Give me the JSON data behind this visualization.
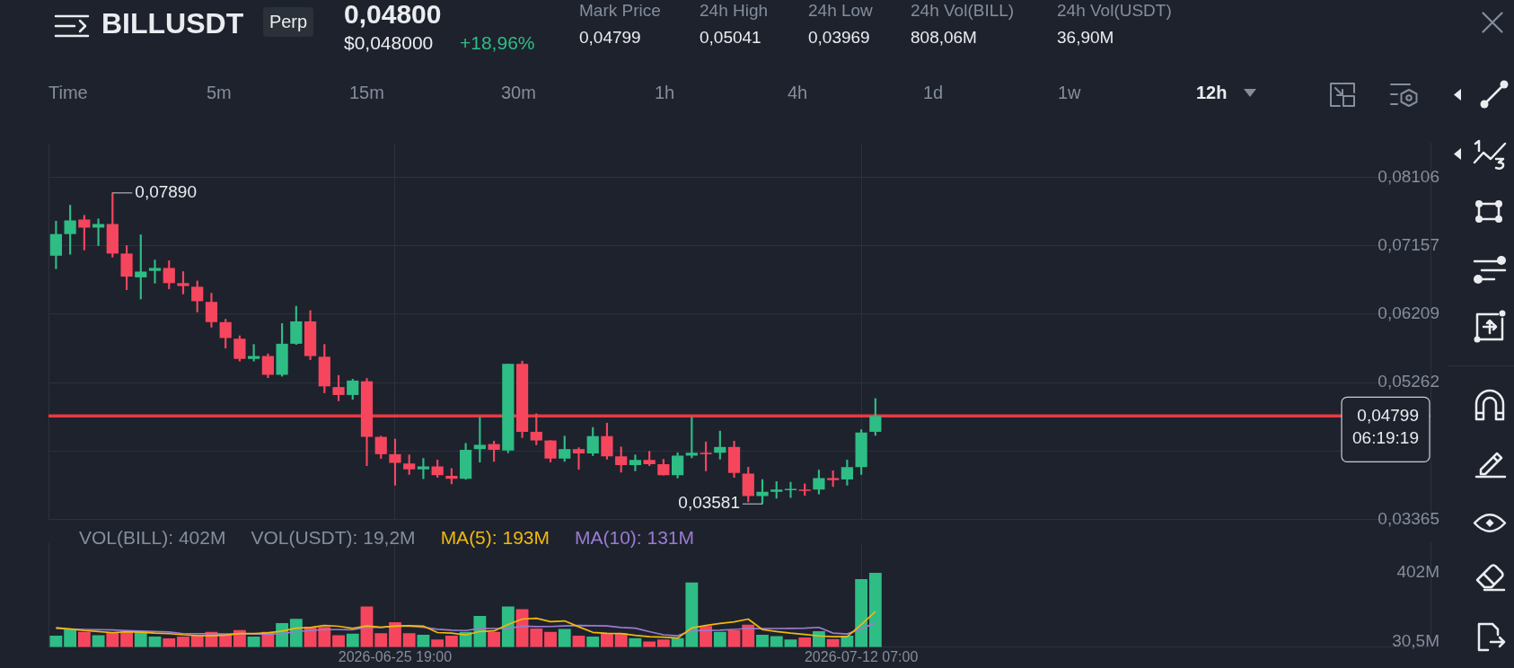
{
  "chart_data": [
    {
      "type": "other",
      "title": "BILLUSDT",
      "annotations": [
        "Perp",
        "0,04800",
        "$0,048000",
        "+18,96%",
        "Mark Price",
        "0,04799",
        "24h High",
        "0,05041",
        "24h Low",
        "0,03969",
        "24h Vol(BILL)",
        "808,06M",
        "24h Vol(USDT)",
        "36,90M",
        "Time",
        "5m",
        "15m",
        "30m",
        "1h",
        "4h",
        "1d",
        "1w",
        "12h"
      ]
    },
    {
      "type": "candlestick",
      "x": [
        "2026-06-13T19:00",
        "2026-06-14T07:00",
        "2026-06-14T19:00",
        "2026-06-15T07:00",
        "2026-06-15T19:00",
        "2026-06-16T07:00",
        "2026-06-16T19:00",
        "2026-06-17T07:00",
        "2026-06-17T19:00",
        "2026-06-18T07:00",
        "2026-06-18T19:00",
        "2026-06-19T07:00",
        "2026-06-19T19:00",
        "2026-06-20T07:00",
        "2026-06-20T19:00",
        "2026-06-21T07:00",
        "2026-06-21T19:00",
        "2026-06-22T07:00",
        "2026-06-22T19:00",
        "2026-06-23T07:00",
        "2026-06-23T19:00",
        "2026-06-24T07:00",
        "2026-06-24T19:00",
        "2026-06-25T07:00",
        "2026-06-25T19:00",
        "2026-06-26T07:00",
        "2026-06-26T19:00",
        "2026-06-27T07:00",
        "2026-06-27T19:00",
        "2026-06-28T07:00",
        "2026-06-28T19:00",
        "2026-06-29T07:00",
        "2026-06-29T19:00",
        "2026-06-30T07:00",
        "2026-06-30T19:00",
        "2026-07-01T07:00",
        "2026-07-01T19:00",
        "2026-07-02T07:00",
        "2026-07-02T19:00",
        "2026-07-03T07:00",
        "2026-07-03T19:00",
        "2026-07-04T07:00",
        "2026-07-04T19:00",
        "2026-07-05T07:00",
        "2026-07-05T19:00",
        "2026-07-06T07:00",
        "2026-07-06T19:00",
        "2026-07-07T07:00",
        "2026-07-07T19:00",
        "2026-07-08T07:00",
        "2026-07-08T19:00",
        "2026-07-09T07:00",
        "2026-07-09T19:00",
        "2026-07-10T07:00",
        "2026-07-10T19:00",
        "2026-07-11T07:00",
        "2026-07-11T19:00",
        "2026-07-12T07:00",
        "2026-07-12T19:00"
      ],
      "ohlc": [
        [
          0.0702,
          0.075,
          0.0684,
          0.0732
        ],
        [
          0.0732,
          0.0772,
          0.0704,
          0.0751
        ],
        [
          0.0752,
          0.0758,
          0.071,
          0.0741
        ],
        [
          0.0741,
          0.0753,
          0.0716,
          0.0746
        ],
        [
          0.0746,
          0.0789,
          0.07,
          0.0705
        ],
        [
          0.0705,
          0.0716,
          0.0655,
          0.0673
        ],
        [
          0.0672,
          0.0731,
          0.0642,
          0.068
        ],
        [
          0.0681,
          0.0696,
          0.0664,
          0.0685
        ],
        [
          0.0685,
          0.0695,
          0.0656,
          0.0664
        ],
        [
          0.0664,
          0.068,
          0.0649,
          0.066
        ],
        [
          0.0659,
          0.0667,
          0.0624,
          0.0639
        ],
        [
          0.0638,
          0.065,
          0.0603,
          0.061
        ],
        [
          0.061,
          0.0614,
          0.0574,
          0.0588
        ],
        [
          0.0587,
          0.0591,
          0.0556,
          0.0559
        ],
        [
          0.0559,
          0.0579,
          0.0556,
          0.0563
        ],
        [
          0.0563,
          0.0566,
          0.0533,
          0.0537
        ],
        [
          0.0537,
          0.0608,
          0.0535,
          0.058
        ],
        [
          0.058,
          0.0632,
          0.0579,
          0.0611
        ],
        [
          0.0611,
          0.0626,
          0.0558,
          0.0563
        ],
        [
          0.0562,
          0.0579,
          0.0512,
          0.0521
        ],
        [
          0.052,
          0.0536,
          0.0501,
          0.0509
        ],
        [
          0.0509,
          0.0531,
          0.0503,
          0.0529
        ],
        [
          0.0528,
          0.0532,
          0.0411,
          0.0451
        ],
        [
          0.0451,
          0.0452,
          0.0421,
          0.0427
        ],
        [
          0.0427,
          0.0448,
          0.0384,
          0.0415
        ],
        [
          0.0414,
          0.0426,
          0.0399,
          0.0406
        ],
        [
          0.0406,
          0.0421,
          0.0393,
          0.041
        ],
        [
          0.041,
          0.0419,
          0.0395,
          0.0398
        ],
        [
          0.0397,
          0.0407,
          0.0386,
          0.0393
        ],
        [
          0.0393,
          0.0442,
          0.0392,
          0.0433
        ],
        [
          0.0434,
          0.0478,
          0.0416,
          0.044
        ],
        [
          0.0441,
          0.0445,
          0.0417,
          0.0433
        ],
        [
          0.0432,
          0.0552,
          0.0429,
          0.0552
        ],
        [
          0.0552,
          0.0556,
          0.045,
          0.0458
        ],
        [
          0.0458,
          0.0483,
          0.044,
          0.0446
        ],
        [
          0.0446,
          0.0446,
          0.0416,
          0.0421
        ],
        [
          0.0421,
          0.0452,
          0.0417,
          0.0434
        ],
        [
          0.0434,
          0.0436,
          0.0406,
          0.0428
        ],
        [
          0.0428,
          0.0464,
          0.0425,
          0.0452
        ],
        [
          0.0452,
          0.047,
          0.042,
          0.0424
        ],
        [
          0.0424,
          0.0437,
          0.0402,
          0.0412
        ],
        [
          0.0412,
          0.0426,
          0.0404,
          0.0419
        ],
        [
          0.0419,
          0.0431,
          0.0411,
          0.0413
        ],
        [
          0.0413,
          0.042,
          0.0398,
          0.0398
        ],
        [
          0.0398,
          0.0429,
          0.0394,
          0.0425
        ],
        [
          0.0425,
          0.0478,
          0.0422,
          0.0429
        ],
        [
          0.0429,
          0.0444,
          0.0404,
          0.0427
        ],
        [
          0.0429,
          0.0459,
          0.042,
          0.0437
        ],
        [
          0.0437,
          0.0445,
          0.0395,
          0.0401
        ],
        [
          0.04,
          0.0409,
          0.0361,
          0.0369
        ],
        [
          0.0369,
          0.0392,
          0.03581,
          0.0375
        ],
        [
          0.0375,
          0.0389,
          0.0366,
          0.0378
        ],
        [
          0.0377,
          0.0388,
          0.0367,
          0.0378
        ],
        [
          0.0378,
          0.0386,
          0.037,
          0.0376
        ],
        [
          0.0378,
          0.0405,
          0.0372,
          0.0394
        ],
        [
          0.0394,
          0.0404,
          0.0382,
          0.0391
        ],
        [
          0.0392,
          0.0419,
          0.0384,
          0.0409
        ],
        [
          0.0409,
          0.0461,
          0.0399,
          0.0457
        ],
        [
          0.0458,
          0.05041,
          0.0453,
          0.04799
        ]
      ],
      "colors": [
        "#2ebd85",
        "#2ebd85",
        "#f6465d",
        "#2ebd85",
        "#f6465d",
        "#f6465d",
        "#2ebd85",
        "#2ebd85",
        "#f6465d",
        "#f6465d",
        "#f6465d",
        "#f6465d",
        "#f6465d",
        "#f6465d",
        "#2ebd85",
        "#f6465d",
        "#2ebd85",
        "#2ebd85",
        "#f6465d",
        "#f6465d",
        "#f6465d",
        "#2ebd85",
        "#f6465d",
        "#f6465d",
        "#f6465d",
        "#f6465d",
        "#2ebd85",
        "#f6465d",
        "#f6465d",
        "#2ebd85",
        "#2ebd85",
        "#f6465d",
        "#2ebd85",
        "#f6465d",
        "#f6465d",
        "#f6465d",
        "#2ebd85",
        "#f6465d",
        "#2ebd85",
        "#f6465d",
        "#f6465d",
        "#2ebd85",
        "#f6465d",
        "#f6465d",
        "#2ebd85",
        "#2ebd85",
        "#f6465d",
        "#2ebd85",
        "#f6465d",
        "#f6465d",
        "#2ebd85",
        "#2ebd85",
        "#2ebd85",
        "#f6465d",
        "#2ebd85",
        "#f6465d",
        "#2ebd85",
        "#2ebd85",
        "#2ebd85"
      ],
      "xlim": [
        "2026-06-13T12:36",
        "2026-08-01T10:30"
      ],
      "xticks": [
        {
          "value": "2026-06-25T19:00",
          "label": null
        },
        {
          "value": "2026-07-12T07:00",
          "label": null
        }
      ],
      "ylim": [
        0.03365,
        0.0858
      ],
      "yticks": [
        {
          "value": 0.08106,
          "label": "0,08106"
        },
        {
          "value": 0.07157,
          "label": "0,07157"
        },
        {
          "value": 0.06209,
          "label": "0,06209"
        },
        {
          "value": 0.05262,
          "label": "0,05262"
        },
        {
          "value": 0.04314,
          "label": null
        },
        {
          "value": 0.03365,
          "label": "0,03365"
        }
      ],
      "grid": true,
      "tick_labels": "y",
      "annotations": [
        {
          "text": "0,07890",
          "x": "2026-06-15T19:00",
          "y": 0.0789
        },
        {
          "text": "0,03581",
          "x": "2026-07-08T19:00",
          "y": 0.03581
        }
      ],
      "ref_lines": [
        {
          "axis": "y",
          "value": 0.04799,
          "label": "0,04799\n06:19:19",
          "color": "#ea3943"
        }
      ]
    },
    {
      "type": "bar",
      "x": [
        "2026-06-13T19:00",
        "2026-06-14T07:00",
        "2026-06-14T19:00",
        "2026-06-15T07:00",
        "2026-06-15T19:00",
        "2026-06-16T07:00",
        "2026-06-16T19:00",
        "2026-06-17T07:00",
        "2026-06-17T19:00",
        "2026-06-18T07:00",
        "2026-06-18T19:00",
        "2026-06-19T07:00",
        "2026-06-19T19:00",
        "2026-06-20T07:00",
        "2026-06-20T19:00",
        "2026-06-21T07:00",
        "2026-06-21T19:00",
        "2026-06-22T07:00",
        "2026-06-22T19:00",
        "2026-06-23T07:00",
        "2026-06-23T19:00",
        "2026-06-24T07:00",
        "2026-06-24T19:00",
        "2026-06-25T07:00",
        "2026-06-25T19:00",
        "2026-06-26T07:00",
        "2026-06-26T19:00",
        "2026-06-27T07:00",
        "2026-06-27T19:00",
        "2026-06-28T07:00",
        "2026-06-28T19:00",
        "2026-06-29T07:00",
        "2026-06-29T19:00",
        "2026-06-30T07:00",
        "2026-06-30T19:00",
        "2026-07-01T07:00",
        "2026-07-01T19:00",
        "2026-07-02T07:00",
        "2026-07-02T19:00",
        "2026-07-03T07:00",
        "2026-07-03T19:00",
        "2026-07-04T07:00",
        "2026-07-04T19:00",
        "2026-07-05T07:00",
        "2026-07-05T19:00",
        "2026-07-06T07:00",
        "2026-07-06T19:00",
        "2026-07-07T07:00",
        "2026-07-07T19:00",
        "2026-07-08T07:00",
        "2026-07-08T19:00",
        "2026-07-09T07:00",
        "2026-07-09T19:00",
        "2026-07-10T07:00",
        "2026-07-10T19:00",
        "2026-07-11T07:00",
        "2026-07-11T19:00",
        "2026-07-12T07:00",
        "2026-07-12T19:00"
      ],
      "series": [
        {
          "type": "bar",
          "values": [
            62,
            96,
            83,
            65,
            83,
            88,
            88,
            57,
            47,
            57,
            67,
            83,
            70,
            93,
            57,
            83,
            130,
            153,
            109,
            109,
            65,
            73,
            220,
            75,
            135,
            75,
            67,
            42,
            62,
            83,
            169,
            83,
            220,
            205,
            101,
            83,
            99,
            62,
            57,
            75,
            75,
            49,
            31,
            42,
            49,
            350,
            114,
            83,
            91,
            122,
            67,
            60,
            42,
            52,
            86,
            44,
            62,
            368,
            402
          ],
          "colors": [
            "#2ebd85",
            "#2ebd85",
            "#f6465d",
            "#2ebd85",
            "#f6465d",
            "#f6465d",
            "#2ebd85",
            "#2ebd85",
            "#f6465d",
            "#f6465d",
            "#f6465d",
            "#f6465d",
            "#f6465d",
            "#f6465d",
            "#2ebd85",
            "#f6465d",
            "#2ebd85",
            "#2ebd85",
            "#f6465d",
            "#f6465d",
            "#f6465d",
            "#2ebd85",
            "#f6465d",
            "#f6465d",
            "#f6465d",
            "#f6465d",
            "#2ebd85",
            "#f6465d",
            "#f6465d",
            "#2ebd85",
            "#2ebd85",
            "#f6465d",
            "#2ebd85",
            "#f6465d",
            "#f6465d",
            "#f6465d",
            "#2ebd85",
            "#f6465d",
            "#2ebd85",
            "#f6465d",
            "#f6465d",
            "#2ebd85",
            "#f6465d",
            "#f6465d",
            "#2ebd85",
            "#2ebd85",
            "#f6465d",
            "#2ebd85",
            "#f6465d",
            "#f6465d",
            "#2ebd85",
            "#2ebd85",
            "#2ebd85",
            "#f6465d",
            "#2ebd85",
            "#f6465d",
            "#2ebd85",
            "#2ebd85",
            "#2ebd85"
          ]
        },
        {
          "type": "line",
          "name": "MA(5): 193M",
          "color": "#f0b90b",
          "values": [
            105,
            98,
            90,
            85,
            78,
            83,
            81,
            76,
            73,
            67,
            63,
            62,
            65,
            74,
            74,
            77,
            87,
            103,
            106,
            117,
            113,
            102,
            115,
            108,
            114,
            116,
            114,
            79,
            76,
            66,
            85,
            88,
            123,
            152,
            156,
            138,
            142,
            110,
            80,
            75,
            74,
            64,
            57,
            54,
            49,
            104,
            117,
            128,
            137,
            152,
            95,
            85,
            76,
            69,
            61,
            57,
            57,
            122,
            193
          ]
        },
        {
          "type": "line",
          "name": "MA(10): 131M",
          "color": "#9b7bd1",
          "values": [
            101,
            98,
            96,
            95,
            93,
            90,
            87,
            85,
            82,
            73,
            73,
            72,
            71,
            73,
            71,
            70,
            74,
            84,
            90,
            95,
            95,
            94,
            109,
            107,
            115,
            114,
            108,
            97,
            92,
            90,
            100,
            101,
            101,
            114,
            111,
            112,
            115,
            117,
            116,
            115,
            106,
            103,
            84,
            67,
            62,
            89,
            90,
            92,
            96,
            101,
            100,
            101,
            102,
            103,
            107,
            76,
            71,
            99,
            131
          ]
        }
      ],
      "xlim": [
        "2026-06-13T12:36",
        "2026-08-01T10:30"
      ],
      "xticks": [
        {
          "value": "2026-06-25T19:00",
          "label": "2026-06-25 19:00"
        },
        {
          "value": "2026-07-12T07:00",
          "label": "2026-07-12 07:00"
        }
      ],
      "ylim": [
        0,
        565
      ],
      "yticks": [
        {
          "value": 402,
          "label": "402M"
        },
        {
          "value": 30.5,
          "label": "30,5M"
        }
      ],
      "grid": "x",
      "legend": "top left",
      "marker": "none",
      "annotations": [
        "VOL(BILL): 402M",
        "VOL(USDT): 19,2M"
      ]
    }
  ]
}
